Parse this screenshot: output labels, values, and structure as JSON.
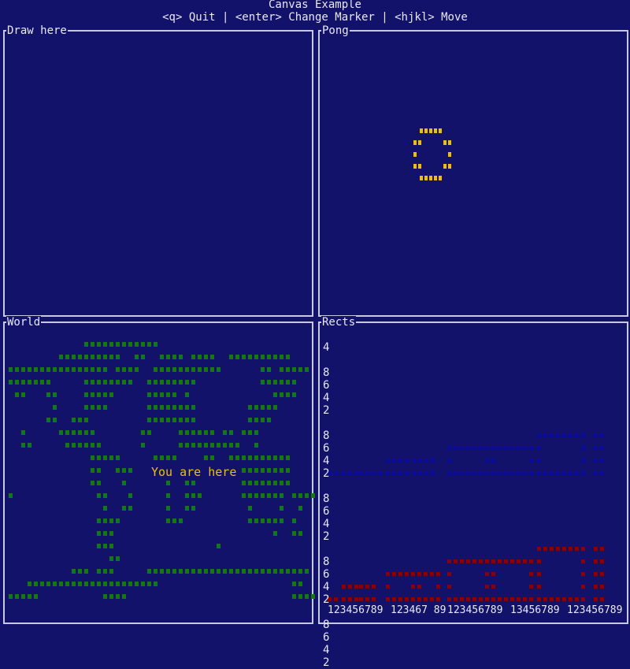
{
  "app": {
    "title": "Canvas Example",
    "help": "<q> Quit | <enter> Change Marker | <hjkl> Move"
  },
  "panels": {
    "draw": {
      "title": "Draw here"
    },
    "pong": {
      "title": "Pong"
    },
    "world": {
      "title": "World",
      "marker_label": "You are here"
    },
    "rects": {
      "title": "Rects"
    }
  },
  "colors": {
    "background": "#12126a",
    "border": "#c8c8e0",
    "text": "#e8e8f8",
    "map": "#0f7a0f",
    "marker": "#f0c000",
    "ball": "#f0c000",
    "rect_blue": "#0a0aa0",
    "rect_red": "#8c0000"
  },
  "rects_axis": {
    "y_top": "4",
    "y_groups": [
      [
        "8",
        "6",
        "4",
        "2"
      ],
      [
        "8",
        "6",
        "4",
        "2"
      ],
      [
        "8",
        "6",
        "4",
        "2"
      ],
      [
        "8",
        "6",
        "4",
        "2"
      ],
      [
        "8",
        "6",
        "4",
        "2"
      ]
    ],
    "x_labels": [
      "123456789",
      "123467 89",
      "123456789",
      "13456789",
      "123456789"
    ]
  }
}
